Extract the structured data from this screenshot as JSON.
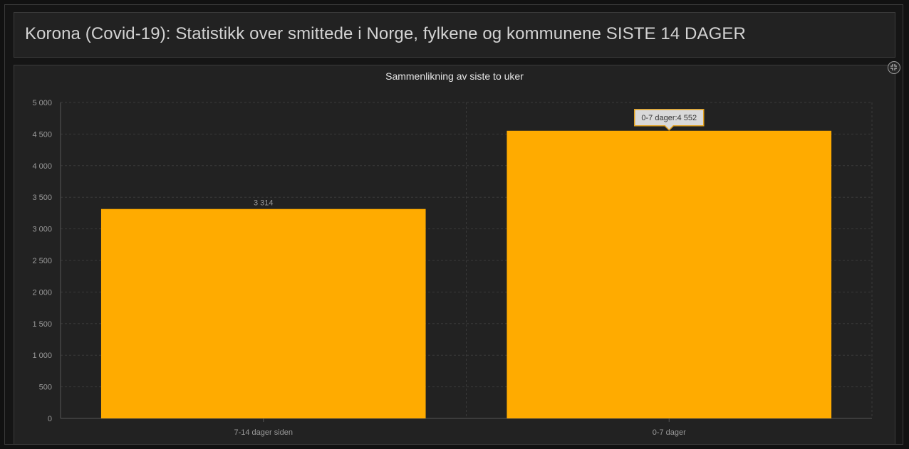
{
  "header": {
    "title": "Korona (Covid-19): Statistikk over smittede i Norge, fylkene og kommunene SISTE 14 DAGER"
  },
  "widget": {
    "expand_icon": "collapse-arrows-icon"
  },
  "colors": {
    "bar": "#ffab00",
    "background": "#222222",
    "text": "#9a9a9a",
    "grid": "#3a3a3a",
    "tooltip_bg": "#d9d9d9",
    "tooltip_border": "#e0a020"
  },
  "chart_data": {
    "type": "bar",
    "title": "Sammenlikning av siste to uker",
    "categories": [
      "7-14 dager siden",
      "0-7 dager"
    ],
    "values": [
      3314,
      4552
    ],
    "value_labels": [
      "3 314",
      "4 552"
    ],
    "ylim": [
      0,
      5000
    ],
    "yticks": [
      0,
      500,
      1000,
      1500,
      2000,
      2500,
      3000,
      3500,
      4000,
      4500,
      5000
    ],
    "ytick_labels": [
      "0",
      "500",
      "1 000",
      "1 500",
      "2 000",
      "2 500",
      "3 000",
      "3 500",
      "4 000",
      "4 500",
      "5 000"
    ],
    "grid": true,
    "tooltip": {
      "text": "0-7 dager:4 552",
      "category_index": 1
    }
  }
}
